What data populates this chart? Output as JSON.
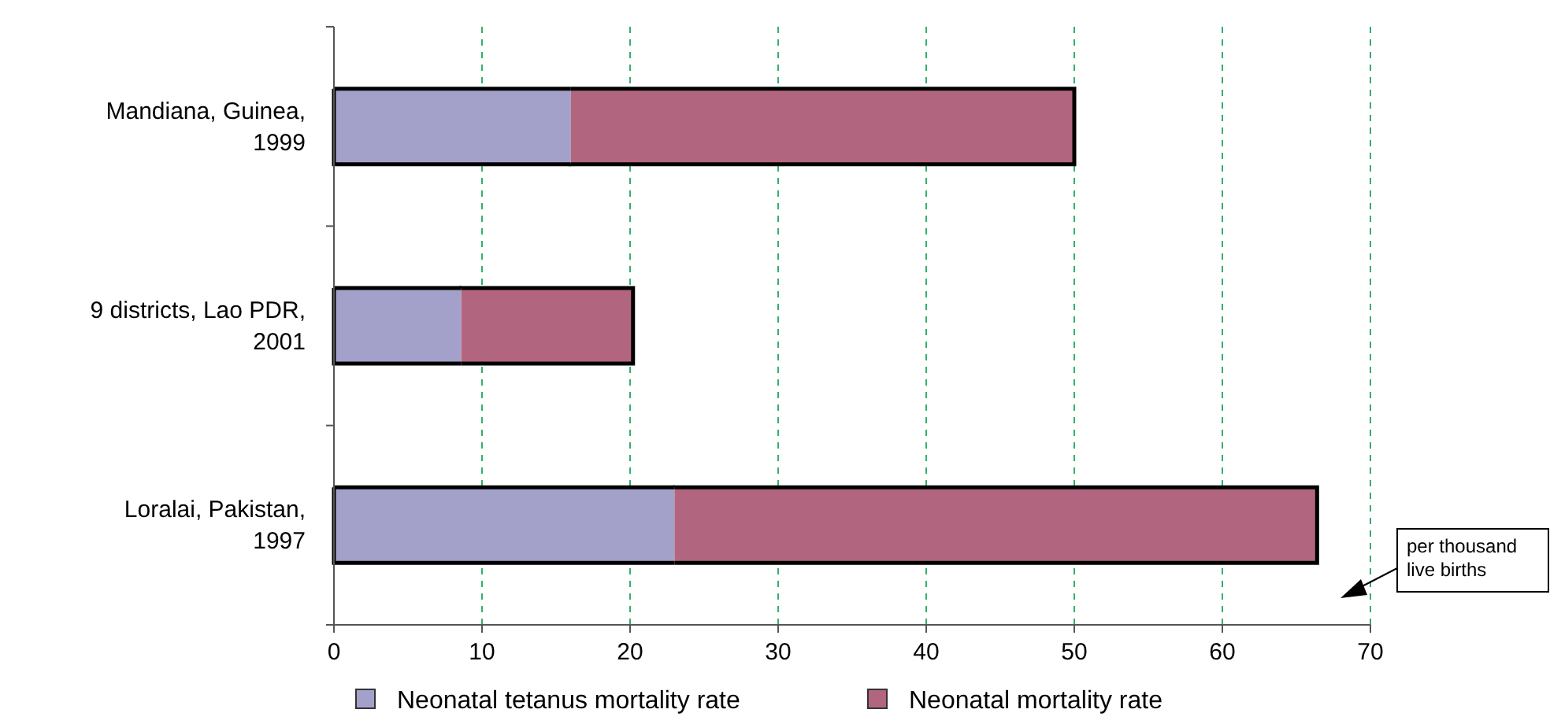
{
  "chart_data": {
    "type": "bar",
    "orientation": "horizontal",
    "stacked": true,
    "categories": [
      "Mandiana, Guinea, 1999",
      "9 districts, Lao PDR, 2001",
      "Loralai, Pakistan, 1997"
    ],
    "series": [
      {
        "name": "Neonatal tetanus mortality rate",
        "color": "#a3a1ca",
        "values": [
          16,
          8.6,
          23
        ]
      },
      {
        "name": "Neonatal mortality rate",
        "color": "#b2657f",
        "values": [
          34,
          11.6,
          43.4
        ]
      }
    ],
    "xlim": [
      0,
      70
    ],
    "xticks": [
      0,
      10,
      20,
      30,
      40,
      50,
      60,
      70
    ],
    "grid": "x",
    "legend": "bottom",
    "annotations": [
      "per thousand live births"
    ]
  }
}
